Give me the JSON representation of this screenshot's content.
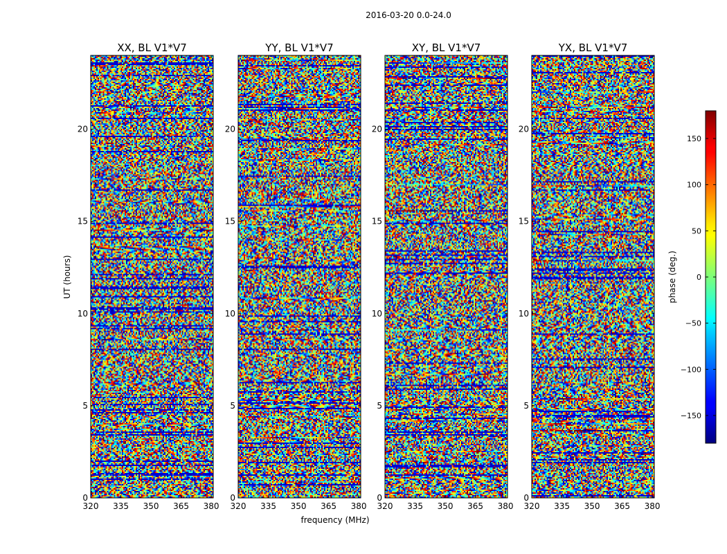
{
  "figure": {
    "suptitle": "2016-03-20 0.0-24.0"
  },
  "chart_data": {
    "type": "heatmap",
    "ylabel": "UT (hours)",
    "xlabel": "frequency (MHz)",
    "xlim": [
      320,
      381
    ],
    "ylim": [
      0,
      24
    ],
    "xticks": [
      "320",
      "335",
      "350",
      "365",
      "380"
    ],
    "xtick_values": [
      320,
      335,
      350,
      365,
      380
    ],
    "yticks": [
      "0",
      "5",
      "10",
      "15",
      "20"
    ],
    "ytick_values": [
      0,
      5,
      10,
      15,
      20
    ],
    "colormap": "jet",
    "panels": [
      {
        "title": "XX, BL V1*V7",
        "seed": 11
      },
      {
        "title": "YY, BL V1*V7",
        "seed": 23
      },
      {
        "title": "XY, BL V1*V7",
        "seed": 37
      },
      {
        "title": "YX, BL V1*V7",
        "seed": 41
      }
    ],
    "colorbar": {
      "label": "phase (deg.)",
      "range": [
        -180,
        180
      ],
      "ticks": [
        "150",
        "100",
        "50",
        "0",
        "−50",
        "−100",
        "−150"
      ],
      "tick_values": [
        150,
        100,
        50,
        0,
        -50,
        -100,
        -150
      ]
    }
  }
}
